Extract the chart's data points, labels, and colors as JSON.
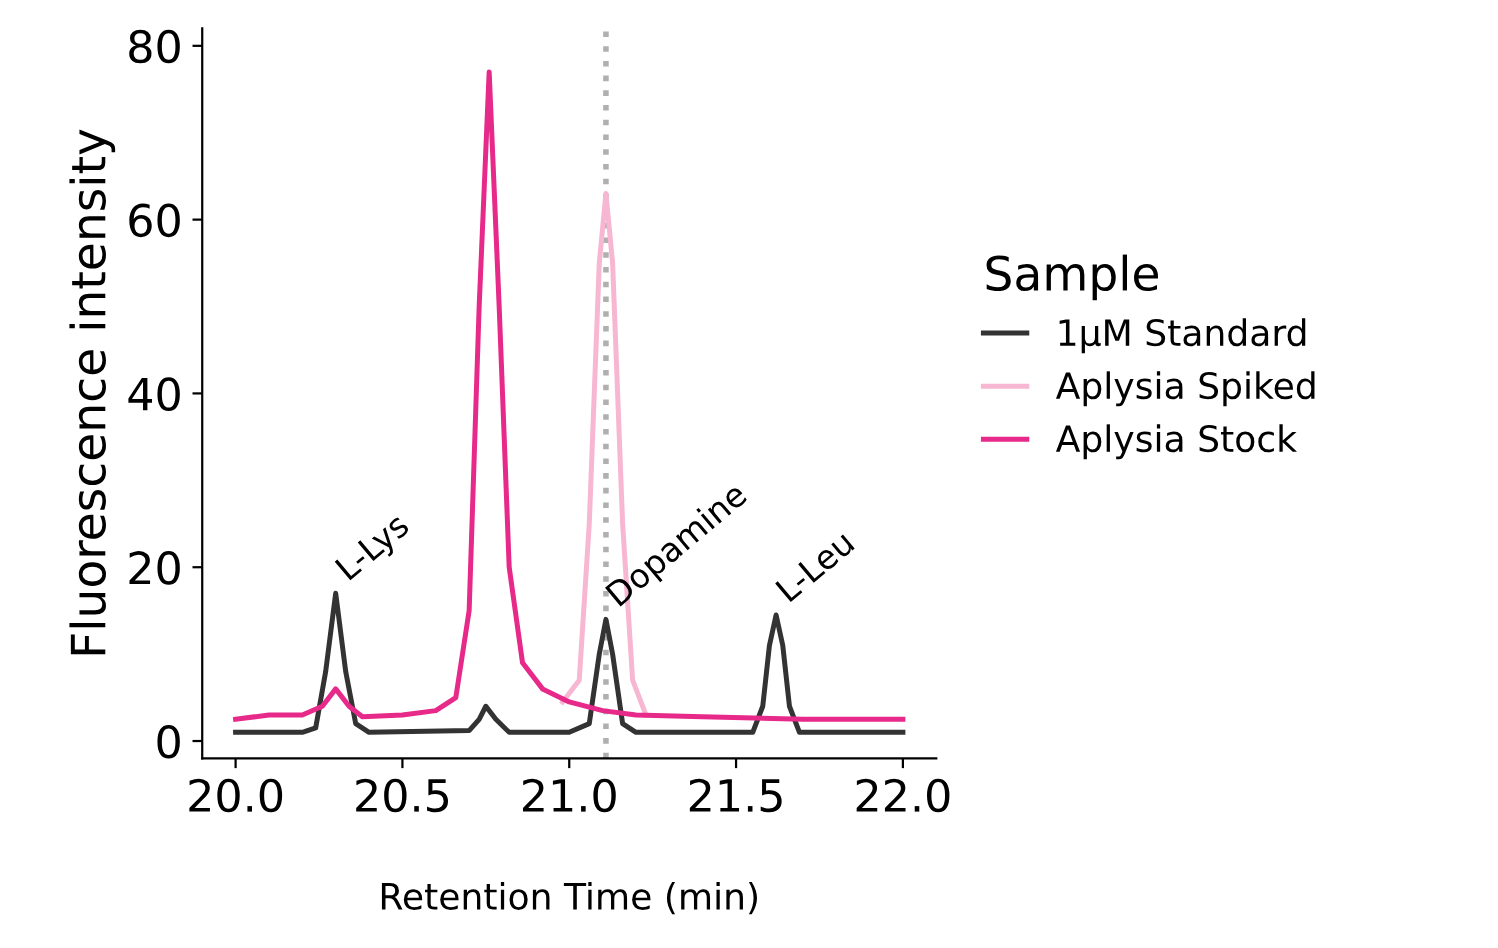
{
  "chart_data": {
    "type": "line",
    "xlabel": "Retention Time (min)",
    "ylabel": "Fluorescence intensity",
    "legend_title": "Sample",
    "legend": "right",
    "xlim": [
      19.9,
      22.1
    ],
    "ylim": [
      -2,
      82
    ],
    "xticks": [
      {
        "value": 20.0,
        "label": "20.0"
      },
      {
        "value": 20.5,
        "label": "20.5"
      },
      {
        "value": 21.0,
        "label": "21.0"
      },
      {
        "value": 21.5,
        "label": "21.5"
      },
      {
        "value": 22.0,
        "label": "22.0"
      }
    ],
    "yticks": [
      0,
      20,
      40,
      60,
      80
    ],
    "grid": false,
    "line_style": "solid",
    "ref_lines": [
      {
        "axis": "x",
        "value": 21.11,
        "color": "#b0b0b0",
        "line_style": "dotted"
      }
    ],
    "annotations": [
      {
        "text": "L-Lys",
        "x": 20.3,
        "y": 17
      },
      {
        "text": "Dopamine",
        "x": 21.11,
        "y": 14
      },
      {
        "text": "L-Leu",
        "x": 21.62,
        "y": 14.5
      }
    ],
    "series": [
      {
        "name": "1µM Standard",
        "color": "#333333",
        "x": [
          20.0,
          20.2,
          20.24,
          20.27,
          20.3,
          20.33,
          20.36,
          20.4,
          20.7,
          20.73,
          20.75,
          20.78,
          20.82,
          21.0,
          21.06,
          21.09,
          21.11,
          21.13,
          21.16,
          21.2,
          21.55,
          21.58,
          21.6,
          21.62,
          21.64,
          21.66,
          21.69,
          22.0
        ],
        "values": [
          1,
          1,
          1.5,
          8,
          17,
          8,
          2,
          1,
          1.2,
          2.5,
          4,
          2.5,
          1,
          1,
          2,
          10,
          14,
          10,
          2,
          1,
          1,
          4,
          11,
          14.5,
          11,
          4,
          1,
          1
        ]
      },
      {
        "name": "Aplysia Spiked",
        "color": "#f7b6d2",
        "x": [
          20.98,
          21.03,
          21.06,
          21.09,
          21.11,
          21.13,
          21.16,
          21.19,
          21.23
        ],
        "values": [
          4.5,
          7,
          25,
          55,
          63,
          55,
          25,
          7,
          3
        ]
      },
      {
        "name": "Aplysia Stock",
        "color": "#e7298a",
        "x": [
          20.0,
          20.1,
          20.2,
          20.26,
          20.3,
          20.34,
          20.38,
          20.5,
          20.6,
          20.66,
          20.7,
          20.73,
          20.76,
          20.79,
          20.82,
          20.86,
          20.92,
          21.0,
          21.1,
          21.2,
          21.4,
          21.7,
          22.0
        ],
        "values": [
          2.5,
          3,
          3,
          4,
          6,
          4,
          2.8,
          3,
          3.5,
          5,
          15,
          50,
          77,
          50,
          20,
          9,
          6,
          4.5,
          3.5,
          3,
          2.8,
          2.5,
          2.5
        ]
      }
    ]
  }
}
